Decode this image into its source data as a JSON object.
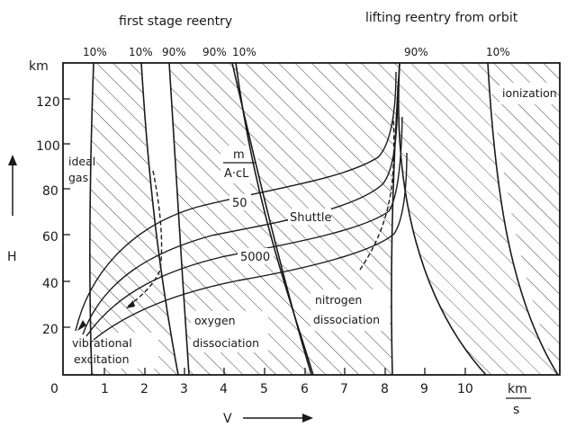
{
  "header": {
    "left_title": "first stage reentry",
    "right_title": "lifting reentry from orbit"
  },
  "percent_labels": [
    "10%",
    "10%",
    "90%",
    "90%",
    "10%",
    "90%",
    "10%"
  ],
  "axes": {
    "y_unit": "km",
    "y_label": "H",
    "y_ticks": [
      "20",
      "40",
      "60",
      "80",
      "100",
      "120"
    ],
    "x_label": "V",
    "x_ticks": [
      "0",
      "1",
      "2",
      "3",
      "4",
      "5",
      "6",
      "7",
      "8",
      "9",
      "10"
    ],
    "x_unit_top": "km",
    "x_unit_bottom": "s"
  },
  "regions": {
    "ideal_gas_1": "ideal",
    "ideal_gas_2": "gas",
    "vibrational_1": "vibrational",
    "vibrational_2": "excitation",
    "oxygen_1": "oxygen",
    "oxygen_2": "dissociation",
    "nitrogen_1": "nitrogen",
    "nitrogen_2": "dissociation",
    "ionization": "ionization"
  },
  "parameter": {
    "numerator": "m",
    "denominator": "A·cL",
    "value_low": "50",
    "value_high": "5000",
    "trajectory": "Shuttle"
  }
}
